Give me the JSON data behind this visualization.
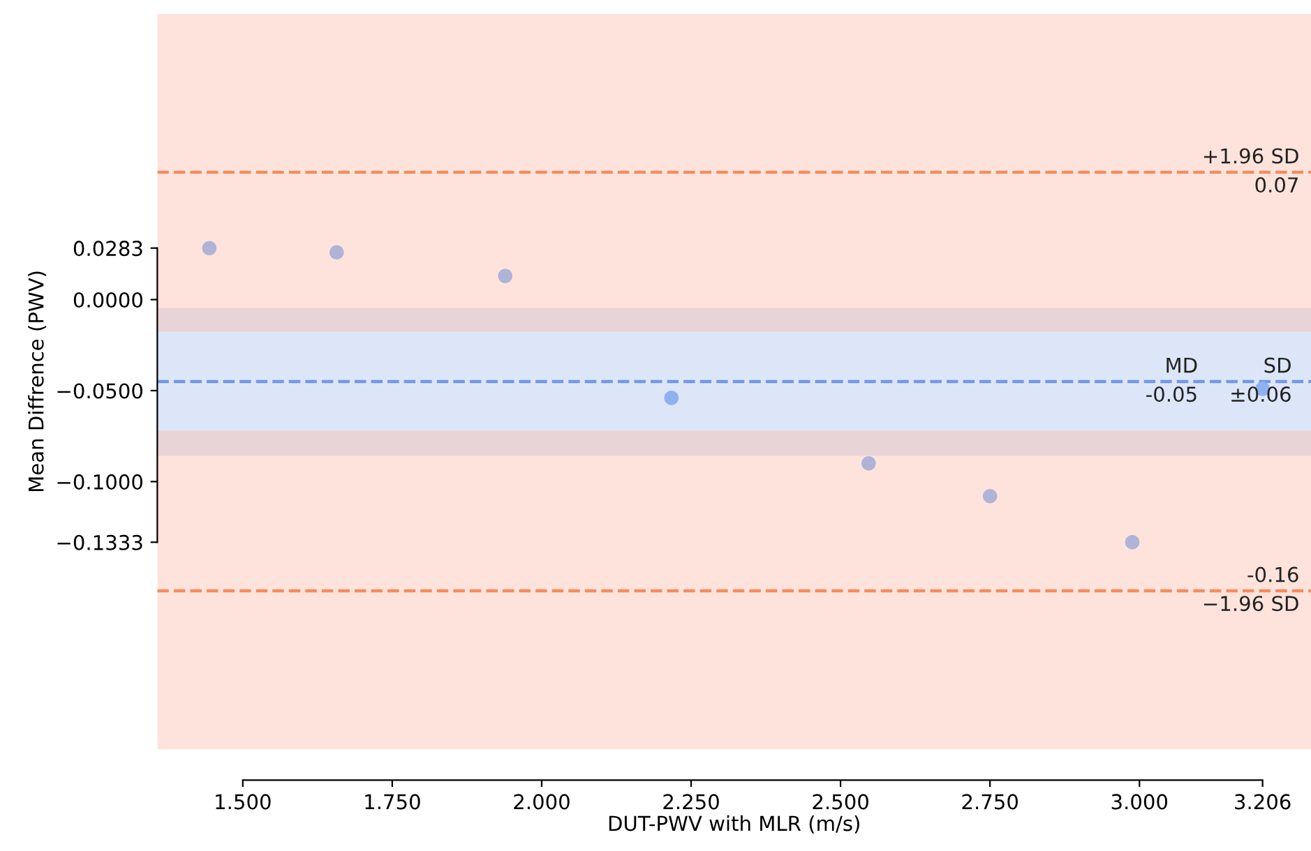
{
  "chart_data": {
    "type": "scatter",
    "xlabel": "DUT-PWV with MLR (m/s)",
    "ylabel": "Mean Diffrence (PWV)",
    "x": [
      1.444,
      1.657,
      1.939,
      2.217,
      2.547,
      2.75,
      2.988,
      3.206
    ],
    "values": [
      0.0283,
      0.026,
      0.013,
      -0.054,
      -0.09,
      -0.108,
      -0.1333,
      -0.049
    ],
    "colors": [
      "#b0b3d8",
      "#b0b3d8",
      "#b0b3d8",
      "#8fb1f0",
      "#b0b3d8",
      "#b0b3d8",
      "#b0b3d8",
      "#8fb1f0"
    ],
    "marker": "circle",
    "xlim": [
      1.357,
      3.287
    ],
    "ylim": [
      -0.247,
      0.157
    ],
    "xticks": [
      {
        "value": 1.5,
        "label": "1.500"
      },
      {
        "value": 1.75,
        "label": "1.750"
      },
      {
        "value": 2.0,
        "label": "2.000"
      },
      {
        "value": 2.25,
        "label": "2.250"
      },
      {
        "value": 2.5,
        "label": "2.500"
      },
      {
        "value": 2.75,
        "label": "2.750"
      },
      {
        "value": 3.0,
        "label": "3.000"
      },
      {
        "value": 3.206,
        "label": "3.206"
      }
    ],
    "yticks": [
      {
        "value": 0.0283,
        "label": "0.0283"
      },
      {
        "value": 0.0,
        "label": "0.0000"
      },
      {
        "value": -0.05,
        "label": "−0.0500"
      },
      {
        "value": -0.1,
        "label": "−0.1000"
      },
      {
        "value": -0.1333,
        "label": "−0.1333"
      }
    ],
    "bands": [
      {
        "axis": "y",
        "from": -0.247,
        "to": 0.157,
        "color": "#fee3dc"
      },
      {
        "axis": "y",
        "from": -0.0858,
        "to": -0.0046,
        "color": "#e8d4d7"
      },
      {
        "axis": "y",
        "from": -0.072,
        "to": -0.0176,
        "color": "#dde6f8"
      }
    ],
    "ref_lines": [
      {
        "axis": "y",
        "value": 0.07,
        "label": "+1.96 SD\n0.07",
        "color": "#f78b5c",
        "line_style": "dashed"
      },
      {
        "axis": "y",
        "value": -0.045,
        "color": "#6f98ec",
        "line_style": "dashed"
      },
      {
        "axis": "y",
        "value": -0.16,
        "label": "-0.16\n−1.96 SD",
        "color": "#f78b5c",
        "line_style": "dashed"
      }
    ],
    "annotations": [
      {
        "text": "MD\n-0.05",
        "x": 3.098,
        "y": -0.045
      },
      {
        "text": "SD\n±0.06",
        "x": 3.255,
        "y": -0.045
      }
    ],
    "grid": false
  }
}
